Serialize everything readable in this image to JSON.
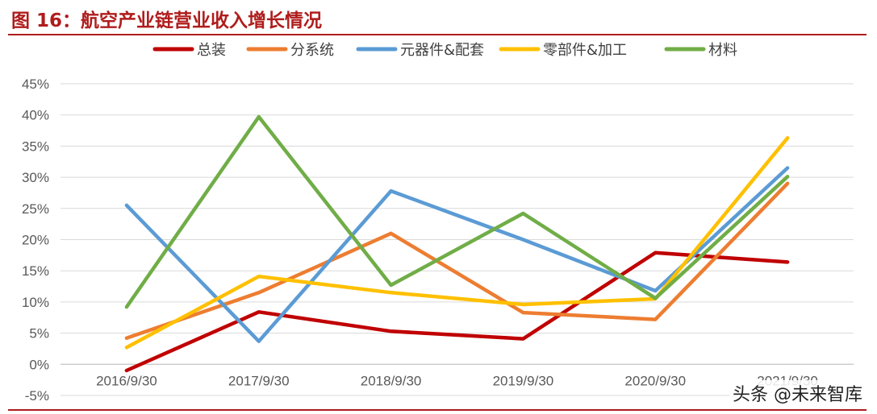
{
  "title": "图 16：航空产业链营业收入增长情况",
  "watermark": "头条 @未来智库",
  "chart_data": {
    "type": "line",
    "title": "",
    "xlabel": "",
    "ylabel": "",
    "x": [
      "2016/9/30",
      "2017/9/30",
      "2018/9/30",
      "2019/9/30",
      "2020/9/30",
      "2021/9/30"
    ],
    "ylim": [
      -5,
      45
    ],
    "yticks": [
      -5,
      0,
      5,
      10,
      15,
      20,
      25,
      30,
      35,
      40,
      45
    ],
    "ytick_labels": [
      "-5%",
      "0%",
      "5%",
      "10%",
      "15%",
      "20%",
      "25%",
      "30%",
      "35%",
      "40%",
      "45%"
    ],
    "grid": true,
    "legend": "top",
    "series": [
      {
        "name": "总装",
        "color": "#c00000",
        "values": [
          -1.0,
          8.4,
          5.3,
          4.1,
          17.9,
          16.4
        ]
      },
      {
        "name": "分系统",
        "color": "#ed7d31",
        "values": [
          4.2,
          11.5,
          21.0,
          8.3,
          7.2,
          29.0
        ]
      },
      {
        "name": "元器件&配套",
        "color": "#5b9bd5",
        "values": [
          25.5,
          3.7,
          27.8,
          20.0,
          11.8,
          31.5
        ]
      },
      {
        "name": "零部件&加工",
        "color": "#ffc000",
        "values": [
          2.7,
          14.1,
          11.5,
          9.6,
          10.5,
          36.3
        ]
      },
      {
        "name": "材料",
        "color": "#70ad47",
        "values": [
          9.2,
          39.7,
          12.7,
          24.2,
          10.6,
          30.1
        ]
      }
    ]
  }
}
